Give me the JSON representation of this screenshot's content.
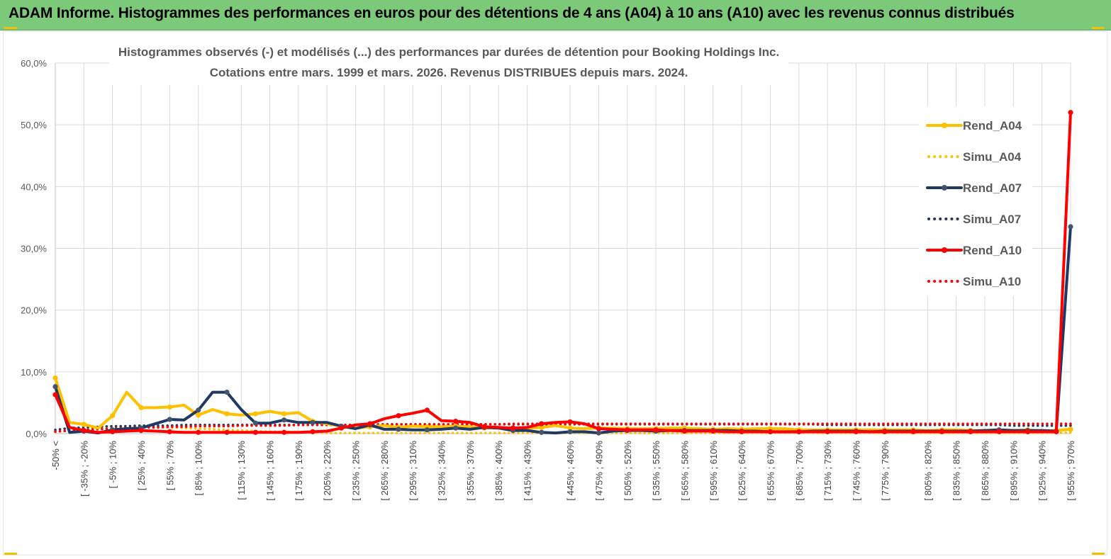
{
  "banner": {
    "title": "ADAM Informe. Histogrammes des performances en euros pour des détentions de 4 ans (A04) à 10 ans (A10) avec les revenus connus distribués"
  },
  "colors": {
    "banner_bg": "#7dc97a",
    "a04": "#ffc000",
    "a07": "#1f3864",
    "a10": "#ff0000",
    "grid": "#d9d9d9"
  },
  "chart_data": {
    "type": "line",
    "title": "Histogrammes observés (-) et modélisés (...) des performances par durées de détention pour Booking Holdings Inc.",
    "subtitle": "Cotations entre mars. 1999 et mars. 2026. Revenus DISTRIBUES depuis mars. 2024.",
    "ylim": [
      0,
      60
    ],
    "y_ticks": [
      "0,0%",
      "10,0%",
      "20,0%",
      "30,0%",
      "40,0%",
      "50,0%",
      "60,0%"
    ],
    "grid": "vertical and horizontal",
    "legend_position": "right",
    "x_labels": [
      "-50% <",
      "[ -35% ; -20%",
      "[ -5% ; 10%",
      "[ 25% ; 40%",
      "[ 55% ; 70%",
      "[ 85% ; 100%",
      "[ 115% ; 130%",
      "[ 145% ; 160%",
      "[ 175% ; 190%",
      "[ 205% ; 220%",
      "[ 235% ; 250%",
      "[ 265% ; 280%",
      "[ 295% ; 310%",
      "[ 325% ; 340%",
      "[ 355% ; 370%",
      "[ 385% ; 400%",
      "[ 415% ; 430%",
      "[ 445% ; 460%",
      "[ 475% ; 490%",
      "[ 505% ; 520%",
      "[ 535% ; 550%",
      "[ 565% ; 580%",
      "[ 595% ; 610%",
      "[ 625% ; 640%",
      "[ 655% ; 670%",
      "[ 685% ; 700%",
      "[ 715% ; 730%",
      "[ 745% ; 760%",
      "[ 775% ; 790%",
      "[ 805% ; 820%",
      "[ 835% ; 850%",
      "[ 865% ; 880%",
      "[ 895% ; 910%",
      "[ 925% ; 940%",
      "[ 955% ; 970%"
    ],
    "series": [
      {
        "name": "Rend_A04",
        "style": "solid",
        "color": "#ffc000",
        "values": [
          9.0,
          1.8,
          1.5,
          0.9,
          2.9,
          6.7,
          4.2,
          4.2,
          4.3,
          4.6,
          3.0,
          3.9,
          3.2,
          3.0,
          3.2,
          3.6,
          3.2,
          3.4,
          2.0,
          1.6,
          1.2,
          0.9,
          1.1,
          1.3,
          1.0,
          1.2,
          1.1,
          1.1,
          1.2,
          1.1,
          0.9,
          1.0,
          0.9,
          0.9,
          1.0,
          1.3,
          0.9,
          0.8,
          0.9,
          0.9,
          0.8,
          0.8,
          0.8,
          0.9,
          0.9,
          0.8,
          0.7,
          0.8,
          0.7,
          0.8,
          0.8,
          0.8,
          0.6,
          0.6,
          0.6,
          0.6,
          0.6,
          0.6,
          0.6,
          0.6,
          0.6,
          0.5,
          0.6,
          0.6,
          0.5,
          0.5,
          0.5,
          0.5,
          0.6,
          0.4,
          0.5,
          0.7
        ]
      },
      {
        "name": "Simu_A04",
        "style": "dotted",
        "color": "#ffc000",
        "values": [
          0.3,
          0.5,
          0.7,
          0.9,
          1.0,
          1.0,
          1.1,
          1.0,
          1.0,
          0.9,
          0.8,
          0.7,
          0.6,
          0.5,
          0.4,
          0.3,
          0.3,
          0.2,
          0.2,
          0.1,
          0.1,
          0.1,
          0.1,
          0.1,
          0.1,
          0.1,
          0.1,
          0.1,
          0.1,
          0.1,
          0.1,
          0.1,
          0.1,
          0.1,
          0.1,
          0.1,
          0.1,
          0.1,
          0.1,
          0.1,
          0.1,
          0.1,
          0.1,
          0.1,
          0.1,
          0.1,
          0.1,
          0.1,
          0.1,
          0.1,
          0.1,
          0.1,
          0.1,
          0.1,
          0.1,
          0.1,
          0.1,
          0.1,
          0.1,
          0.1,
          0.1,
          0.1,
          0.1,
          0.1,
          0.1,
          0.1,
          0.1,
          0.1,
          0.1,
          0.1,
          0.1,
          0.2
        ]
      },
      {
        "name": "Rend_A07",
        "style": "solid",
        "color": "#1f3864",
        "values": [
          7.6,
          0.2,
          0.4,
          0.1,
          0.6,
          0.8,
          0.9,
          1.6,
          2.3,
          2.2,
          3.8,
          6.7,
          6.7,
          3.9,
          1.7,
          1.7,
          2.2,
          1.8,
          1.8,
          1.8,
          1.2,
          0.8,
          1.4,
          0.7,
          0.7,
          0.6,
          0.6,
          0.7,
          0.9,
          0.7,
          1.0,
          0.9,
          0.5,
          0.5,
          0.2,
          0.1,
          0.3,
          0.3,
          0.1,
          0.4,
          0.5,
          0.5,
          0.4,
          0.5,
          0.5,
          0.5,
          0.5,
          0.5,
          0.4,
          0.4,
          0.3,
          0.3,
          0.3,
          0.4,
          0.4,
          0.4,
          0.4,
          0.3,
          0.4,
          0.4,
          0.4,
          0.4,
          0.4,
          0.4,
          0.4,
          0.5,
          0.6,
          0.5,
          0.5,
          0.5,
          0.4,
          33.5
        ]
      },
      {
        "name": "Simu_A07",
        "style": "dotted",
        "color": "#1f3864",
        "values": [
          0.6,
          0.9,
          1.0,
          1.1,
          1.2,
          1.2,
          1.3,
          1.3,
          1.3,
          1.4,
          1.4,
          1.4,
          1.4,
          1.4,
          1.4,
          1.4,
          1.4,
          1.4,
          1.4,
          1.4,
          1.4,
          1.4,
          1.4,
          1.5,
          1.5,
          1.5,
          1.5,
          1.5,
          1.5,
          1.5,
          1.5,
          1.5,
          1.5,
          1.5,
          1.5,
          1.5,
          1.5,
          1.5,
          1.5,
          1.5,
          1.5,
          1.5,
          1.5,
          1.5,
          1.5,
          1.5,
          1.5,
          1.5,
          1.5,
          1.5,
          1.5,
          1.5,
          1.5,
          1.5,
          1.4,
          1.4,
          1.4,
          1.4,
          1.4,
          1.4,
          1.4,
          1.4,
          1.4,
          1.4,
          1.4,
          1.4,
          1.4,
          1.3,
          1.3,
          1.3,
          1.3,
          1.3
        ]
      },
      {
        "name": "Rend_A10",
        "style": "solid",
        "color": "#ff0000",
        "values": [
          6.3,
          1.0,
          0.5,
          0.2,
          0.3,
          0.4,
          0.5,
          0.4,
          0.3,
          0.2,
          0.2,
          0.2,
          0.2,
          0.2,
          0.2,
          0.2,
          0.2,
          0.2,
          0.3,
          0.4,
          0.9,
          1.4,
          1.6,
          2.4,
          2.9,
          3.3,
          3.8,
          2.1,
          2.0,
          1.8,
          1.1,
          1.0,
          0.9,
          1.0,
          1.6,
          1.8,
          1.9,
          1.6,
          0.8,
          0.7,
          0.6,
          0.6,
          0.6,
          0.5,
          0.4,
          0.4,
          0.4,
          0.3,
          0.3,
          0.3,
          0.3,
          0.3,
          0.3,
          0.3,
          0.3,
          0.3,
          0.3,
          0.3,
          0.3,
          0.3,
          0.3,
          0.3,
          0.3,
          0.3,
          0.3,
          0.3,
          0.3,
          0.3,
          0.3,
          0.3,
          0.3,
          52.0
        ]
      },
      {
        "name": "Simu_A10",
        "style": "dotted",
        "color": "#ff0000",
        "values": [
          0.3,
          0.5,
          0.6,
          0.7,
          0.8,
          0.9,
          1.0,
          1.0,
          1.1,
          1.1,
          1.2,
          1.2,
          1.2,
          1.3,
          1.3,
          1.3,
          1.3,
          1.4,
          1.4,
          1.4,
          1.4,
          1.4,
          1.5,
          1.5,
          1.5,
          1.5,
          1.5,
          1.5,
          1.5,
          1.5,
          1.5,
          1.5,
          1.6,
          1.6,
          1.6,
          1.6,
          1.6,
          1.6,
          1.6,
          1.6,
          1.6,
          1.6,
          1.6,
          1.6,
          1.6,
          1.6,
          1.6,
          1.6,
          1.6,
          1.6,
          1.6,
          1.6,
          1.6,
          1.6,
          1.6,
          1.6,
          1.6,
          1.6,
          1.6,
          1.6,
          1.6,
          1.6,
          1.6,
          1.6,
          1.6,
          1.6,
          1.6,
          1.6,
          1.6,
          1.6,
          1.6,
          1.6
        ]
      }
    ]
  }
}
